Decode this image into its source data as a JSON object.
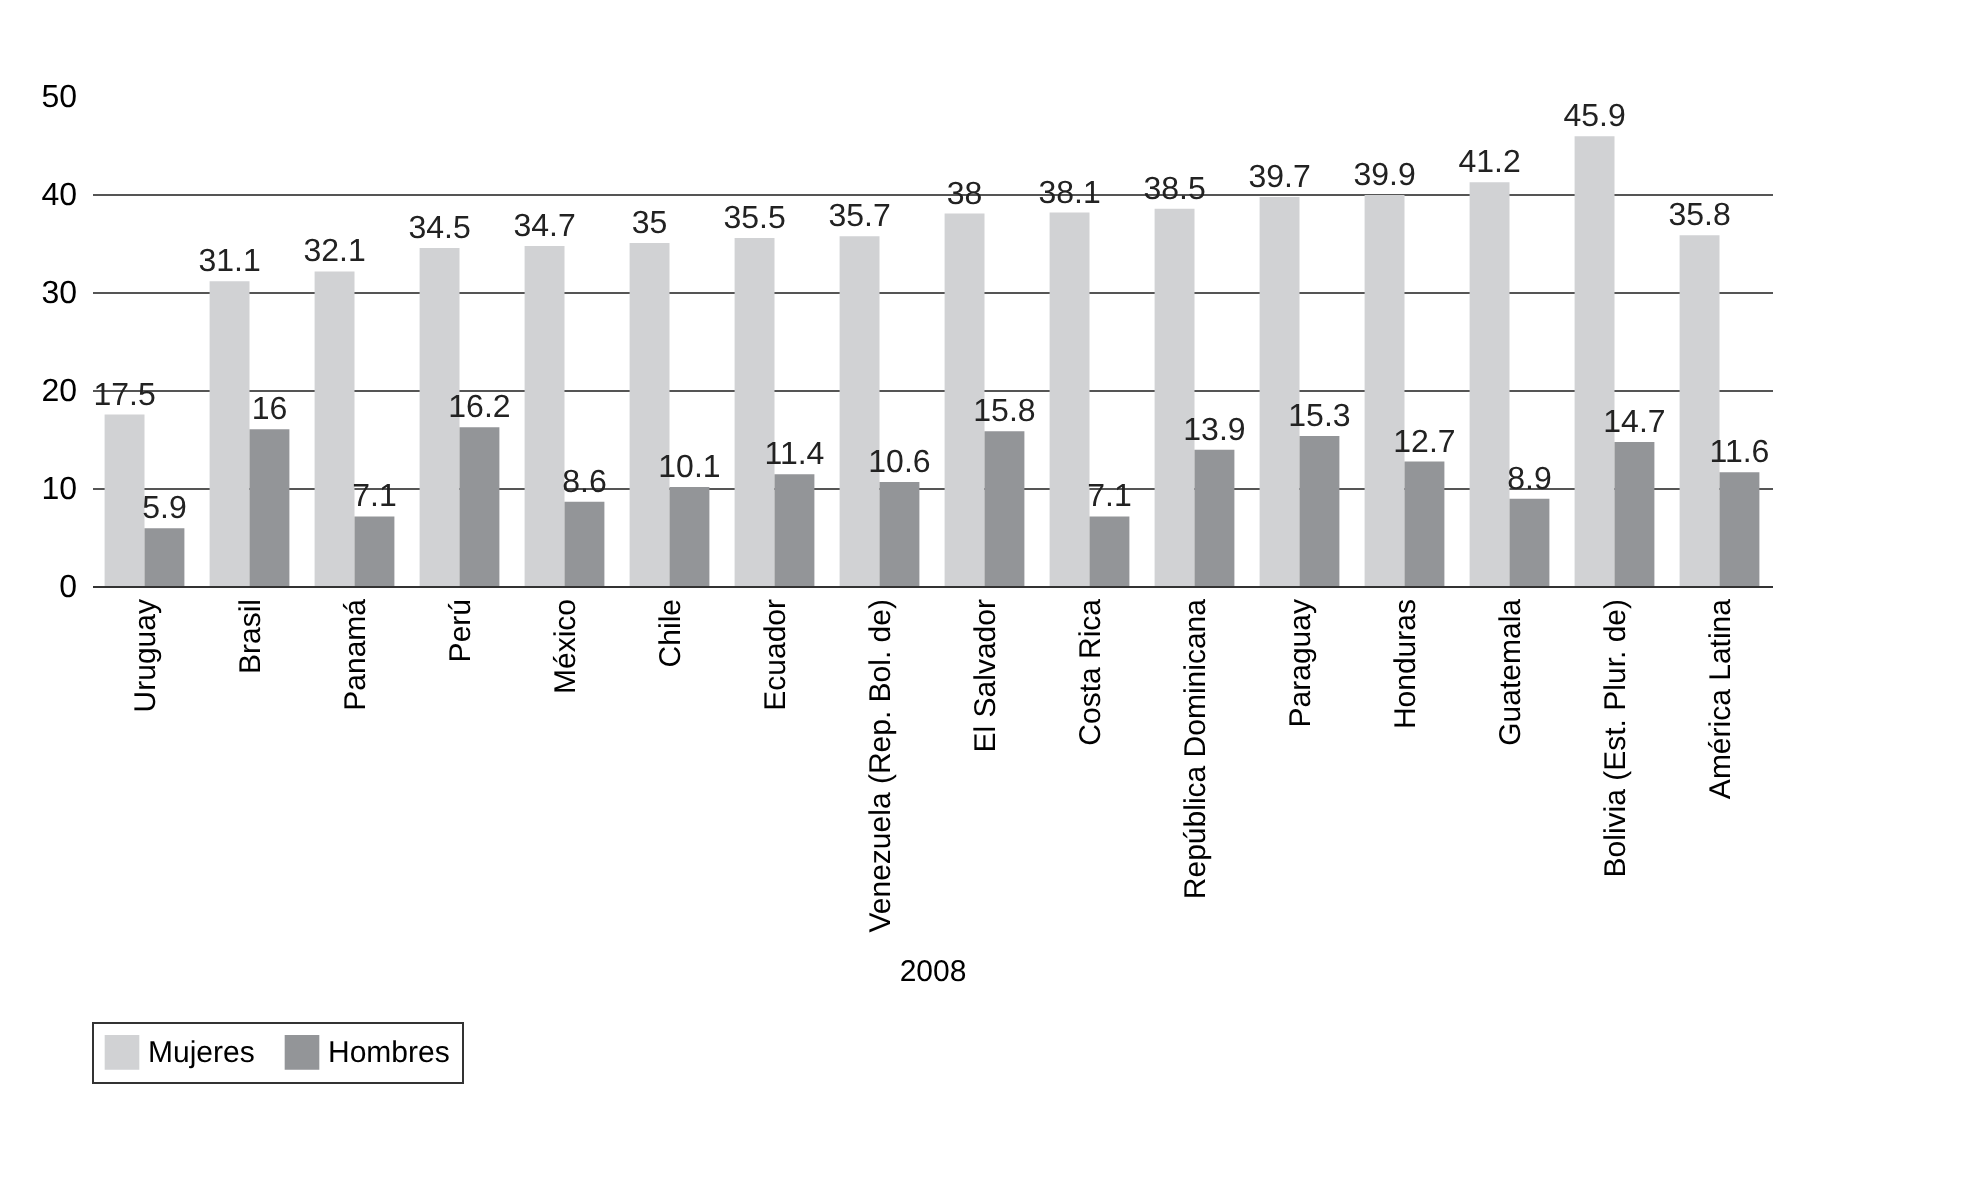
{
  "chart_data": {
    "type": "bar",
    "xlabel": "2008",
    "categories": [
      "Uruguay",
      "Brasil",
      "Panamá",
      "Perú",
      "México",
      "Chile",
      "Ecuador",
      "Venezuela (Rep. Bol. de)",
      "El Salvador",
      "Costa Rica",
      "República Dominicana",
      "Paraguay",
      "Honduras",
      "Guatemala",
      "Bolivia (Est. Plur. de)",
      "América Latina"
    ],
    "series": [
      {
        "name": "Mujeres",
        "color": "#d1d2d4",
        "values": [
          17.5,
          31.1,
          32.1,
          34.5,
          34.7,
          35,
          35.5,
          35.7,
          38,
          38.1,
          38.5,
          39.7,
          39.9,
          41.2,
          45.9,
          35.8
        ]
      },
      {
        "name": "Hombres",
        "color": "#939598",
        "values": [
          5.9,
          16,
          7.1,
          16.2,
          8.6,
          10.1,
          11.4,
          10.6,
          15.8,
          7.1,
          13.9,
          15.3,
          12.7,
          8.9,
          14.7,
          11.6
        ]
      }
    ],
    "ylim": [
      0,
      50
    ],
    "yticks": [
      0,
      10,
      20,
      30,
      40,
      50
    ],
    "grid": "y",
    "legend": "bottom",
    "data_labels": true
  }
}
